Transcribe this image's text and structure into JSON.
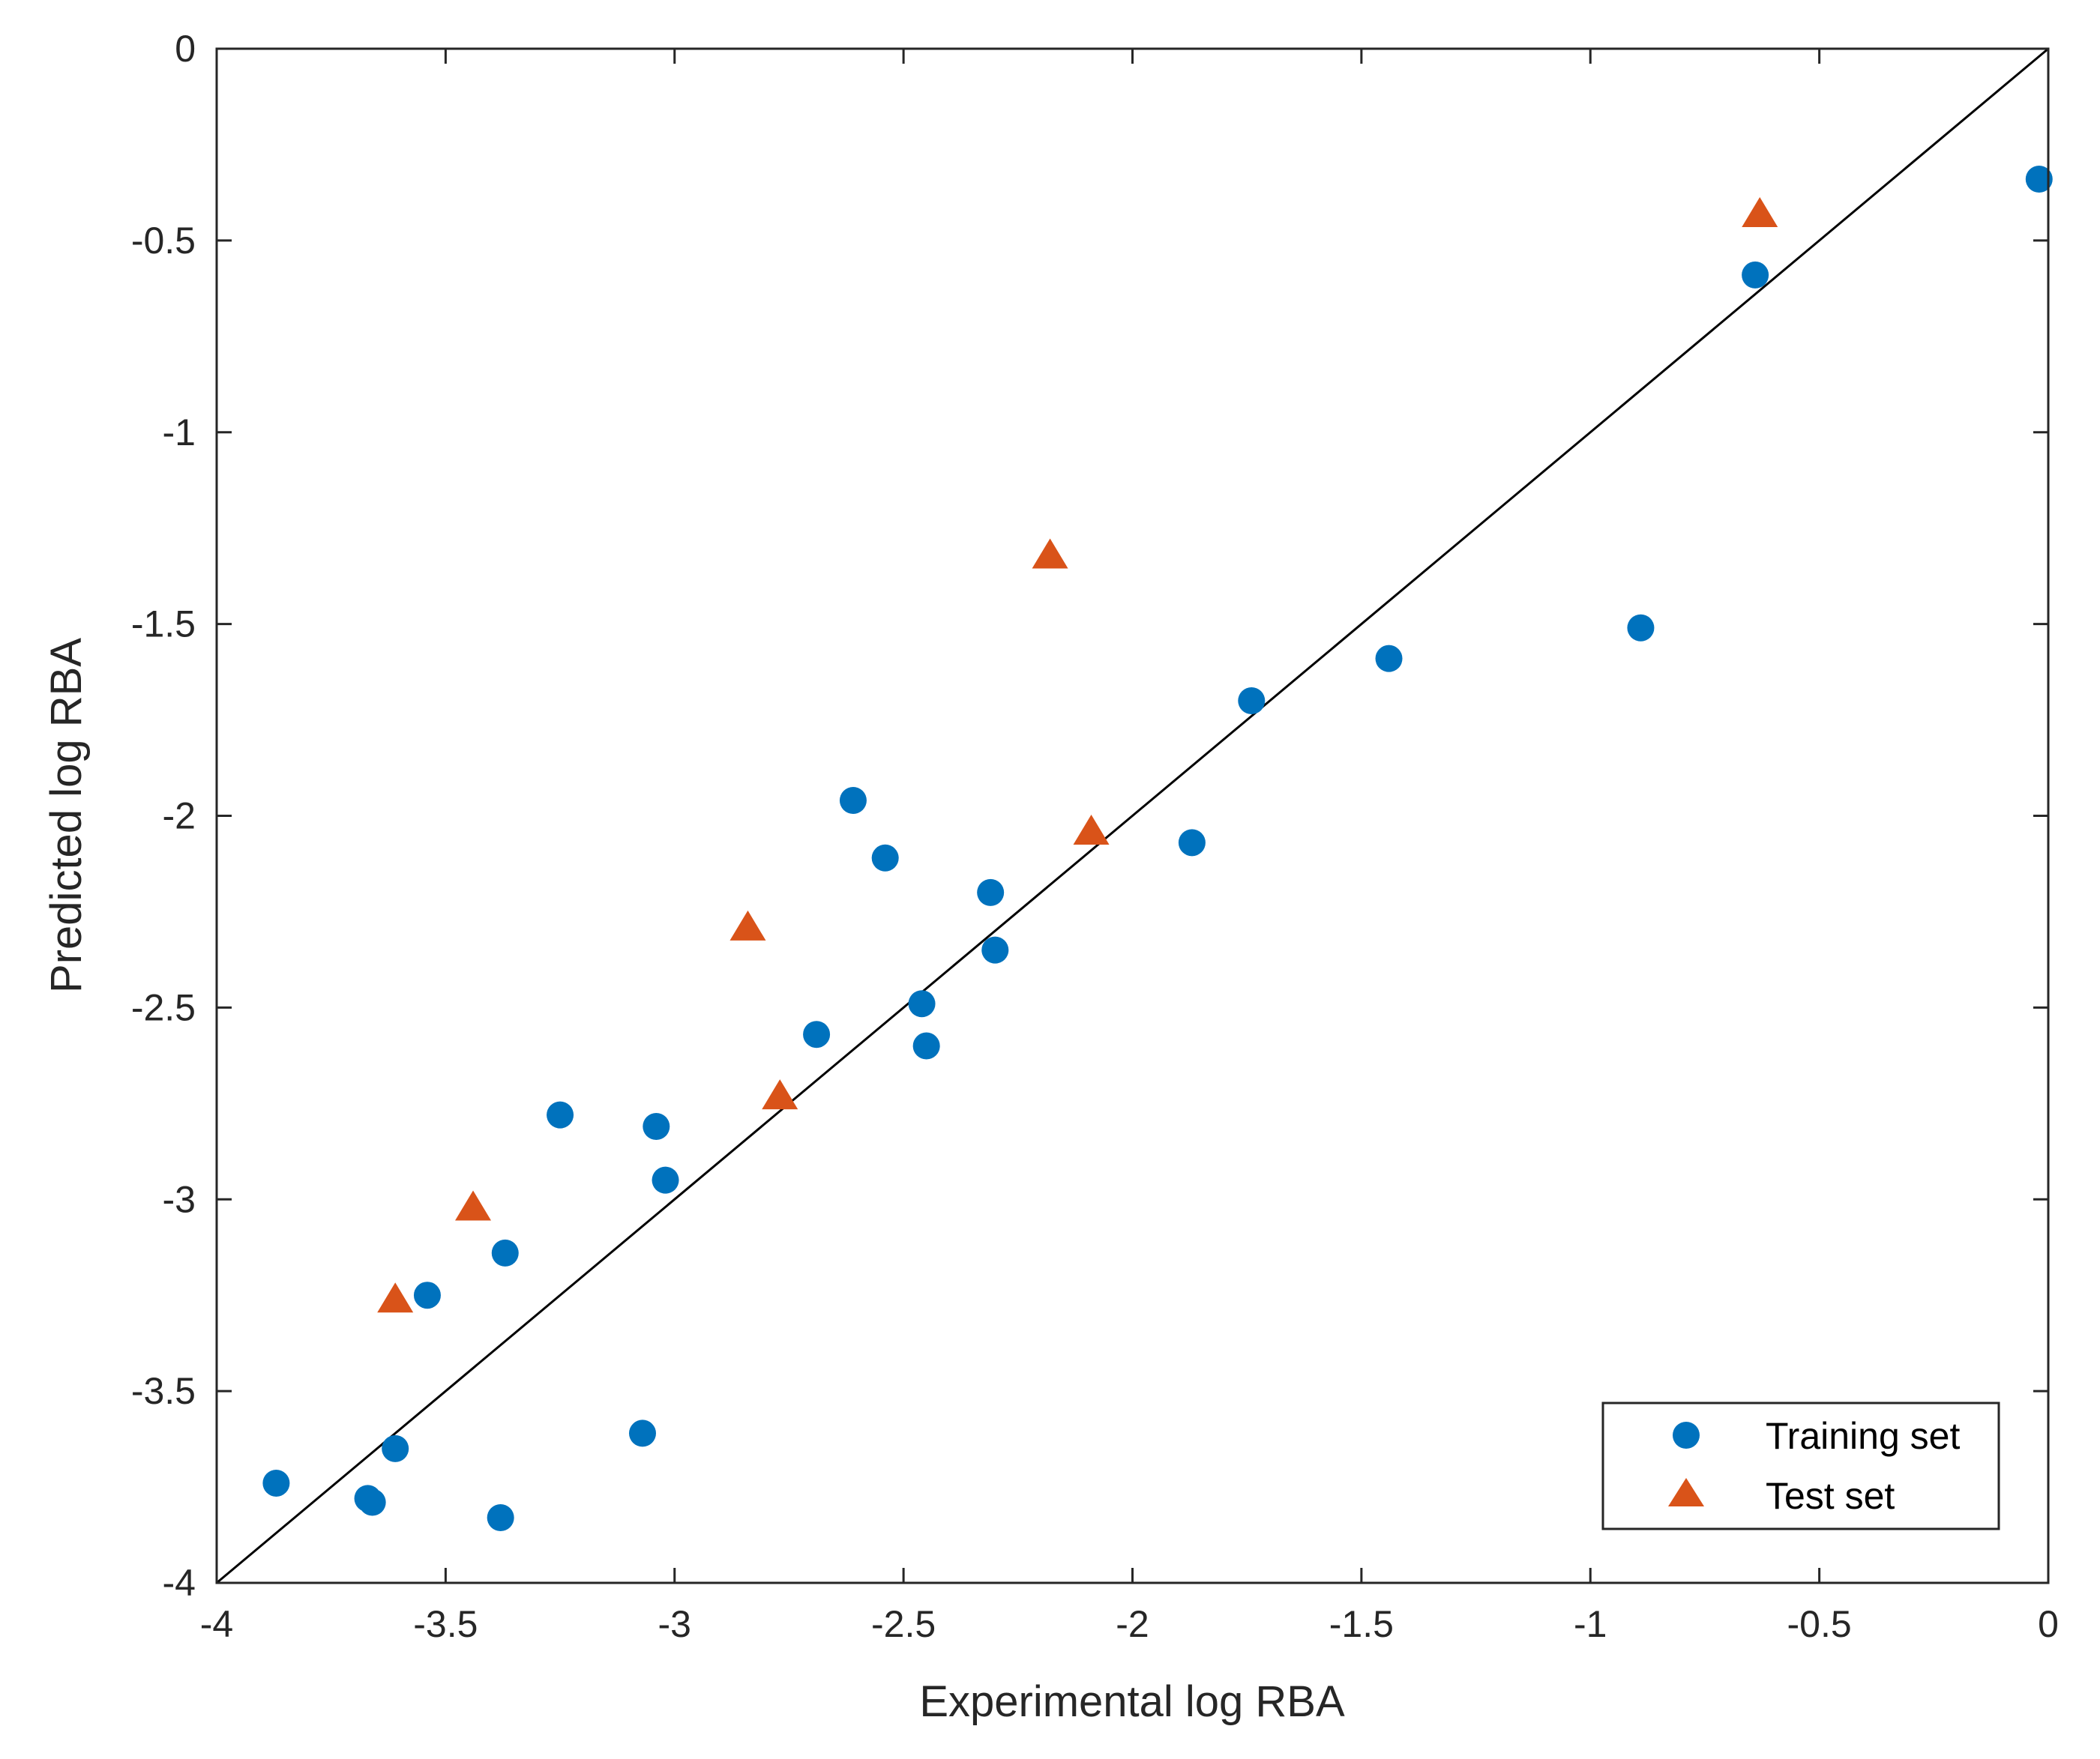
{
  "chart_data": {
    "type": "scatter",
    "title": "",
    "xlabel": "Experimental log RBA",
    "ylabel": "Predicted log RBA",
    "xlim": [
      -4,
      0
    ],
    "ylim": [
      -4,
      0
    ],
    "x_ticks": [
      -4,
      -3.5,
      -3,
      -2.5,
      -2,
      -1.5,
      -1,
      -0.5,
      0
    ],
    "x_tick_labels": [
      "-4",
      "-3.5",
      "-3",
      "-2.5",
      "-2",
      "-1.5",
      "-1",
      "-0.5",
      "0"
    ],
    "y_ticks": [
      -4,
      -3.5,
      -3,
      -2.5,
      -2,
      -1.5,
      -1,
      -0.5,
      0
    ],
    "y_tick_labels": [
      "-4",
      "-3.5",
      "-3",
      "-2.5",
      "-2",
      "-1.5",
      "-1",
      "-0.5",
      "0"
    ],
    "grid": false,
    "legend_position": "bottom-right",
    "reference_line": {
      "from": [
        -4,
        -4
      ],
      "to": [
        0,
        0
      ],
      "color": "#000000"
    },
    "series": [
      {
        "name": "Training set",
        "marker": "circle",
        "color": "#0072BD",
        "points": [
          [
            -0.02,
            -0.34
          ],
          [
            -0.64,
            -0.59
          ],
          [
            -0.89,
            -1.51
          ],
          [
            -1.44,
            -1.59
          ],
          [
            -1.74,
            -1.7
          ],
          [
            -1.87,
            -2.07
          ],
          [
            -2.61,
            -1.96
          ],
          [
            -2.54,
            -2.11
          ],
          [
            -2.31,
            -2.2
          ],
          [
            -2.3,
            -2.35
          ],
          [
            -2.46,
            -2.49
          ],
          [
            -2.45,
            -2.6
          ],
          [
            -2.69,
            -2.57
          ],
          [
            -3.25,
            -2.78
          ],
          [
            -3.04,
            -2.81
          ],
          [
            -3.02,
            -2.95
          ],
          [
            -3.37,
            -3.14
          ],
          [
            -3.54,
            -3.25
          ],
          [
            -3.07,
            -3.61
          ],
          [
            -3.61,
            -3.65
          ],
          [
            -3.87,
            -3.74
          ],
          [
            -3.67,
            -3.78
          ],
          [
            -3.66,
            -3.79
          ],
          [
            -3.38,
            -3.83
          ]
        ]
      },
      {
        "name": "Test set",
        "marker": "triangle",
        "color": "#D95319",
        "points": [
          [
            -0.63,
            -0.43
          ],
          [
            -2.18,
            -1.32
          ],
          [
            -2.09,
            -2.04
          ],
          [
            -2.84,
            -2.29
          ],
          [
            -2.77,
            -2.73
          ],
          [
            -3.44,
            -3.02
          ],
          [
            -3.61,
            -3.26
          ]
        ]
      }
    ]
  }
}
